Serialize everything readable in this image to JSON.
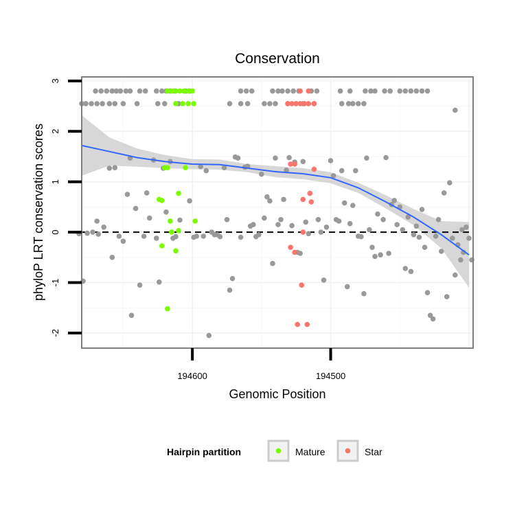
{
  "chart_data": {
    "type": "scatter",
    "title": "Conservation",
    "xlabel": "Genomic Position",
    "ylabel": "phyloP LRT conservation scores",
    "x_reversed": true,
    "xlim": [
      194680,
      194397
    ],
    "ylim": [
      -2.3,
      3.08
    ],
    "x_ticks": [
      194600,
      194500
    ],
    "x_tick_labels": [
      "194600",
      "194500"
    ],
    "y_ticks": [
      -2,
      -1,
      0,
      1,
      2,
      3
    ],
    "y_tick_labels": [
      "-2",
      "-1",
      "0",
      "1",
      "2",
      "3"
    ],
    "grid": true,
    "reference_line": {
      "y": 0,
      "style": "dashed"
    },
    "legend": {
      "title": "Hairpin partition",
      "position": "bottom",
      "entries": [
        {
          "label": "Mature",
          "color": "#7cfc00"
        },
        {
          "label": "Star",
          "color": "#f8766d"
        }
      ]
    },
    "colors": {
      "other": "#999999",
      "Mature": "#7cfc00",
      "Star": "#f8766d",
      "smooth": "#3366ff",
      "band": "#d3d3d3"
    },
    "series": [
      {
        "name": "Other",
        "color": "#999999",
        "points": [
          [
            194670,
            2.8
          ],
          [
            194666,
            2.8
          ],
          [
            194662,
            2.8
          ],
          [
            194658,
            2.8
          ],
          [
            194655,
            2.8
          ],
          [
            194652,
            2.8
          ],
          [
            194648,
            2.8
          ],
          [
            194645,
            2.8
          ],
          [
            194638,
            2.8
          ],
          [
            194634,
            2.8
          ],
          [
            194626,
            2.8
          ],
          [
            194622,
            2.8
          ],
          [
            194619,
            2.8
          ],
          [
            194616,
            2.8
          ],
          [
            194613,
            2.8
          ],
          [
            194605,
            2.8
          ],
          [
            194602,
            2.8
          ],
          [
            194565,
            2.8
          ],
          [
            194561,
            2.8
          ],
          [
            194557,
            2.8
          ],
          [
            194542,
            2.8
          ],
          [
            194538,
            2.8
          ],
          [
            194535,
            2.8
          ],
          [
            194531,
            2.8
          ],
          [
            194527,
            2.8
          ],
          [
            194523,
            2.8
          ],
          [
            194514,
            2.8
          ],
          [
            194510,
            2.8
          ],
          [
            194493,
            2.8
          ],
          [
            194486,
            2.8
          ],
          [
            194475,
            2.8
          ],
          [
            194471,
            2.8
          ],
          [
            194468,
            2.8
          ],
          [
            194461,
            2.8
          ],
          [
            194457,
            2.8
          ],
          [
            194450,
            2.8
          ],
          [
            194446,
            2.8
          ],
          [
            194442,
            2.8
          ],
          [
            194438,
            2.8
          ],
          [
            194434,
            2.8
          ],
          [
            194430,
            2.8
          ],
          [
            194680,
            2.55
          ],
          [
            194677,
            2.55
          ],
          [
            194673,
            2.55
          ],
          [
            194669,
            2.55
          ],
          [
            194665,
            2.55
          ],
          [
            194660,
            2.55
          ],
          [
            194656,
            2.55
          ],
          [
            194650,
            2.55
          ],
          [
            194640,
            2.55
          ],
          [
            194625,
            2.55
          ],
          [
            194620,
            2.55
          ],
          [
            194610,
            2.55
          ],
          [
            194573,
            2.55
          ],
          [
            194565,
            2.55
          ],
          [
            194560,
            2.55
          ],
          [
            194548,
            2.55
          ],
          [
            194544,
            2.55
          ],
          [
            194540,
            2.55
          ],
          [
            194531,
            2.55
          ],
          [
            194520,
            2.55
          ],
          [
            194512,
            2.55
          ],
          [
            194492,
            2.55
          ],
          [
            194487,
            2.55
          ],
          [
            194484,
            2.55
          ],
          [
            194480,
            2.55
          ],
          [
            194476,
            2.55
          ],
          [
            194410,
            2.42
          ],
          [
            194682,
            -0.03
          ],
          [
            194679,
            -0.97
          ],
          [
            194676,
            -0.02
          ],
          [
            194672,
            0
          ],
          [
            194669,
            0.22
          ],
          [
            194668,
            -0.04
          ],
          [
            194664,
            0.1
          ],
          [
            194660,
            1.27
          ],
          [
            194658,
            -0.5
          ],
          [
            194656,
            1.28
          ],
          [
            194653,
            -0.08
          ],
          [
            194650,
            -0.18
          ],
          [
            194647,
            0.75
          ],
          [
            194645,
            1.47
          ],
          [
            194644,
            -1.65
          ],
          [
            194641,
            0.47
          ],
          [
            194638,
            -1.05
          ],
          [
            194635,
            -0.08
          ],
          [
            194633,
            0.78
          ],
          [
            194631,
            0.28
          ],
          [
            194628,
            1.43
          ],
          [
            194626,
            -0.12
          ],
          [
            194624,
            -0.99
          ],
          [
            194621,
            1.27
          ],
          [
            194619,
            0.4
          ],
          [
            194616,
            1.4
          ],
          [
            194614,
            -0.12
          ],
          [
            194612,
            -0.09
          ],
          [
            194609,
            0.24
          ],
          [
            194602,
            0.62
          ],
          [
            194599,
            -0.1
          ],
          [
            194597,
            -0.08
          ],
          [
            194594,
            1.3
          ],
          [
            194592,
            -0.08
          ],
          [
            194590,
            1.22
          ],
          [
            194588,
            -2.05
          ],
          [
            194586,
            0
          ],
          [
            194584,
            -0.05
          ],
          [
            194582,
            -0.05
          ],
          [
            194580,
            -0.09
          ],
          [
            194577,
            1.28
          ],
          [
            194575,
            0.25
          ],
          [
            194573,
            -1.15
          ],
          [
            194571,
            -0.92
          ],
          [
            194569,
            1.49
          ],
          [
            194567,
            1.47
          ],
          [
            194565,
            -0.1
          ],
          [
            194562,
            1.29
          ],
          [
            194560,
            1.31
          ],
          [
            194558,
            0.12
          ],
          [
            194556,
            0.15
          ],
          [
            194554,
            -0.09
          ],
          [
            194552,
            -0.05
          ],
          [
            194550,
            1.15
          ],
          [
            194548,
            0.28
          ],
          [
            194546,
            0.7
          ],
          [
            194544,
            0.62
          ],
          [
            194542,
            -0.62
          ],
          [
            194540,
            1.47
          ],
          [
            194538,
            0.15
          ],
          [
            194536,
            0.25
          ],
          [
            194534,
            0.65
          ],
          [
            194532,
            1.23
          ],
          [
            194530,
            1.48
          ],
          [
            194528,
            0.13
          ],
          [
            194526,
            1.39
          ],
          [
            194524,
            -0.4
          ],
          [
            194522,
            -0.42
          ],
          [
            194520,
            1.4
          ],
          [
            194518,
            0.2
          ],
          [
            194516,
            -0.03
          ],
          [
            194509,
            0.25
          ],
          [
            194507,
            0
          ],
          [
            194505,
            -0.95
          ],
          [
            194503,
            0.1
          ],
          [
            194500,
            1.42
          ],
          [
            194498,
            1.12
          ],
          [
            194496,
            0.25
          ],
          [
            194494,
            0.22
          ],
          [
            194492,
            1.22
          ],
          [
            194490,
            0.58
          ],
          [
            194488,
            -1.08
          ],
          [
            194486,
            0.17
          ],
          [
            194484,
            0.53
          ],
          [
            194482,
            1.22
          ],
          [
            194480,
            -0.08
          ],
          [
            194478,
            -0.09
          ],
          [
            194476,
            -1.22
          ],
          [
            194474,
            1.47
          ],
          [
            194472,
            0.05
          ],
          [
            194470,
            -0.3
          ],
          [
            194468,
            -0.48
          ],
          [
            194466,
            0.36
          ],
          [
            194464,
            -0.45
          ],
          [
            194462,
            0.25
          ],
          [
            194460,
            1.48
          ],
          [
            194458,
            -0.42
          ],
          [
            194456,
            0.55
          ],
          [
            194454,
            0.63
          ],
          [
            194452,
            0.15
          ],
          [
            194450,
            0.5
          ],
          [
            194448,
            0.05
          ],
          [
            194446,
            -0.72
          ],
          [
            194444,
            0.3
          ],
          [
            194442,
            -0.78
          ],
          [
            194440,
            -0.05
          ],
          [
            194438,
            0.12
          ],
          [
            194436,
            -0.1
          ],
          [
            194434,
            0.45
          ],
          [
            194432,
            -0.3
          ],
          [
            194430,
            -1.2
          ],
          [
            194428,
            -1.65
          ],
          [
            194426,
            -1.72
          ],
          [
            194424,
            -0.08
          ],
          [
            194422,
            0.25
          ],
          [
            194420,
            -0.38
          ],
          [
            194418,
            0.78
          ],
          [
            194416,
            -1.28
          ],
          [
            194414,
            0.98
          ],
          [
            194412,
            -0.12
          ],
          [
            194410,
            -0.85
          ],
          [
            194408,
            -0.25
          ],
          [
            194406,
            -0.55
          ],
          [
            194405,
            0.05
          ],
          [
            194404,
            -0.4
          ],
          [
            194402,
            0.1
          ],
          [
            194400,
            -0.12
          ],
          [
            194398,
            -0.55
          ]
        ]
      },
      {
        "name": "Mature",
        "color": "#7cfc00",
        "points": [
          [
            194618,
            2.8
          ],
          [
            194615,
            2.8
          ],
          [
            194612,
            2.8
          ],
          [
            194609,
            2.8
          ],
          [
            194606,
            2.8
          ],
          [
            194603,
            2.8
          ],
          [
            194600,
            2.8
          ],
          [
            194612,
            2.55
          ],
          [
            194607,
            2.55
          ],
          [
            194603,
            2.55
          ],
          [
            194599,
            2.55
          ],
          [
            194620,
            1.28
          ],
          [
            194618,
            1.28
          ],
          [
            194605,
            1.28
          ],
          [
            194624,
            0.65
          ],
          [
            194622,
            0.63
          ],
          [
            194610,
            0.77
          ],
          [
            194616,
            0.22
          ],
          [
            194598,
            0.22
          ],
          [
            194615,
            0
          ],
          [
            194610,
            0.03
          ],
          [
            194622,
            -0.27
          ],
          [
            194612,
            -0.37
          ],
          [
            194618,
            -1.52
          ]
        ]
      },
      {
        "name": "Star",
        "color": "#f8766d",
        "points": [
          [
            194522,
            2.8
          ],
          [
            194516,
            2.8
          ],
          [
            194531,
            2.55
          ],
          [
            194528,
            2.55
          ],
          [
            194525,
            2.55
          ],
          [
            194522,
            2.55
          ],
          [
            194519,
            2.55
          ],
          [
            194516,
            2.55
          ],
          [
            194512,
            2.55
          ],
          [
            194526,
            1.35
          ],
          [
            194529,
            1.35
          ],
          [
            194512,
            1.25
          ],
          [
            194515,
            0.77
          ],
          [
            194520,
            0.65
          ],
          [
            194514,
            0.6
          ],
          [
            194520,
            0
          ],
          [
            194529,
            -0.3
          ],
          [
            194526,
            -0.4
          ],
          [
            194521,
            -1.05
          ],
          [
            194524,
            -1.83
          ],
          [
            194517,
            -1.83
          ]
        ]
      }
    ],
    "smooth": {
      "x": [
        194680,
        194660,
        194640,
        194620,
        194600,
        194580,
        194560,
        194540,
        194520,
        194500,
        194480,
        194460,
        194440,
        194420,
        194400
      ],
      "y": [
        1.72,
        1.6,
        1.48,
        1.4,
        1.35,
        1.34,
        1.27,
        1.2,
        1.16,
        1.08,
        0.88,
        0.6,
        0.3,
        -0.05,
        -0.45
      ],
      "ymin": [
        1.12,
        1.32,
        1.3,
        1.27,
        1.25,
        1.24,
        1.19,
        1.09,
        1.05,
        0.97,
        0.78,
        0.47,
        0.14,
        -0.32,
        -1.1
      ],
      "ymax": [
        2.32,
        1.88,
        1.66,
        1.53,
        1.45,
        1.44,
        1.35,
        1.31,
        1.27,
        1.19,
        0.98,
        0.73,
        0.46,
        0.22,
        0.2
      ]
    }
  }
}
